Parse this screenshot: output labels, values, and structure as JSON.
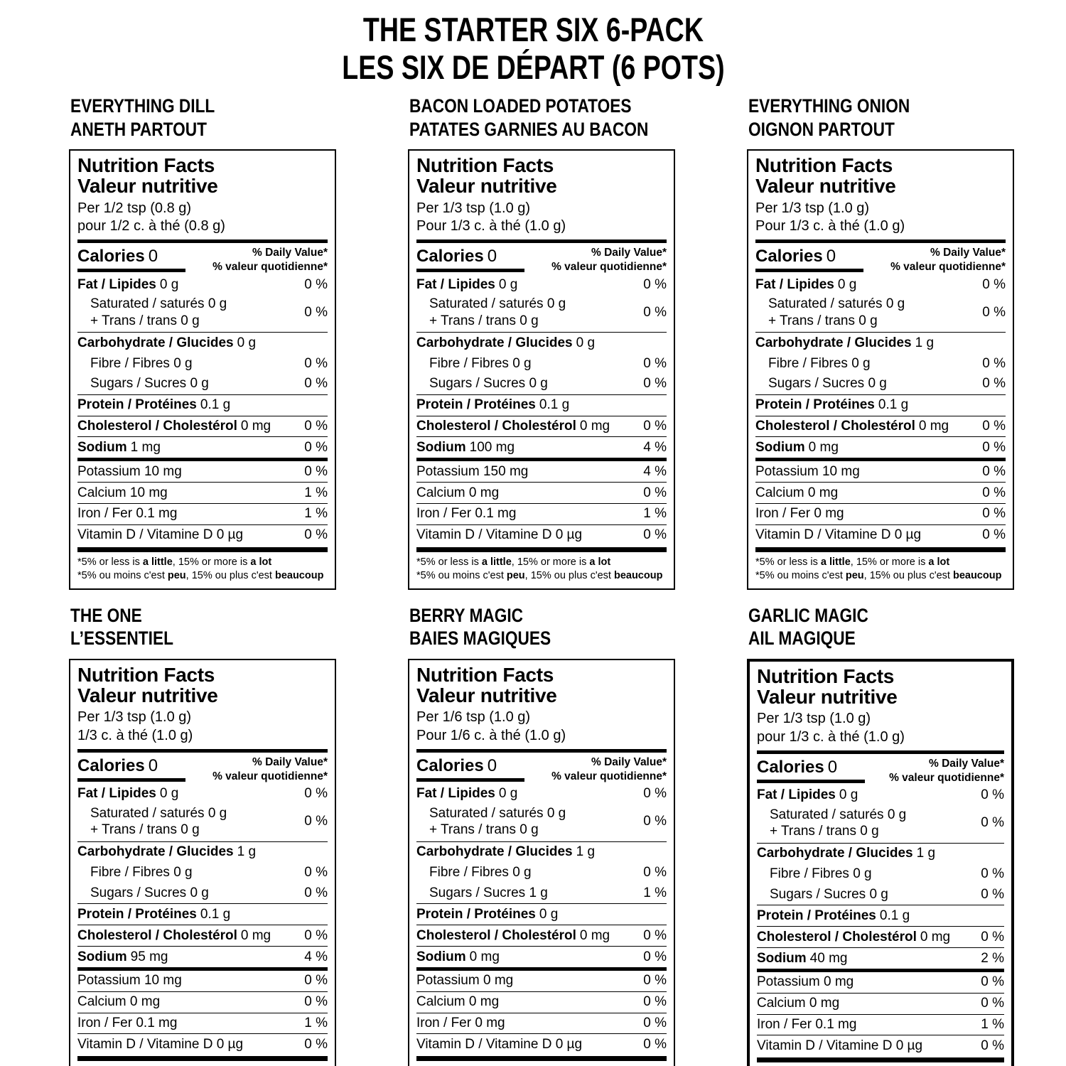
{
  "page_title": {
    "line1": "THE STARTER SIX 6-PACK",
    "line2": "LES SIX DE DÉPART (6 POTS)"
  },
  "shared": {
    "nutrition_facts_en": "Nutrition Facts",
    "nutrition_facts_fr": "Valeur nutritive",
    "calories_label": "Calories",
    "daily_value_en": "% Daily Value*",
    "daily_value_fr": "% valeur quotidienne*",
    "footnote_en_1": "*5% or less is ",
    "footnote_en_b1": "a little",
    "footnote_en_2": ", 15% or more is ",
    "footnote_en_b2": "a lot",
    "footnote_fr_1": "*5% ou moins c'est ",
    "footnote_fr_b1": "peu",
    "footnote_fr_2": ", 15% ou plus c'est ",
    "footnote_fr_b2": "beaucoup"
  },
  "labels": [
    {
      "name_en": "EVERYTHING DILL",
      "name_fr": "ANETH PARTOUT",
      "serving_en": "Per 1/2 tsp (0.8 g)",
      "serving_fr": "pour 1/2 c. à thé (0.8 g)",
      "calories_value": "0",
      "fat_label": "Fat / Lipides",
      "fat_amount": "0 g",
      "fat_dv": "0 %",
      "sat_line1": "Saturated / saturés 0 g",
      "sat_line2": "+ Trans / trans 0 g",
      "sat_dv": "0 %",
      "carb_label": "Carbohydrate / Glucides",
      "carb_amount": "0 g",
      "fibre_text": "Fibre / Fibres 0 g",
      "fibre_dv": "0 %",
      "sugars_text": "Sugars / Sucres 0 g",
      "sugars_dv": "0 %",
      "protein_label": "Protein / Protéines",
      "protein_amount": "0.1 g",
      "cholesterol_label": "Cholesterol / Cholestérol",
      "cholesterol_amount": "0 mg",
      "cholesterol_dv": "0 %",
      "sodium_label": "Sodium",
      "sodium_amount": "1 mg",
      "sodium_dv": "0 %",
      "potassium_text": "Potassium 10 mg",
      "potassium_dv": "0 %",
      "calcium_text": "Calcium 10 mg",
      "calcium_dv": "1 %",
      "iron_text": "Iron / Fer 0.1 mg",
      "iron_dv": "1 %",
      "vitamin_d_text": "Vitamin D / Vitamine D 0 µg",
      "vitamin_d_dv": "0 %"
    },
    {
      "name_en": "BACON LOADED POTATOES",
      "name_fr": "PATATES GARNIES AU BACON",
      "serving_en": "Per 1/3 tsp (1.0 g)",
      "serving_fr": "Pour 1/3 c. à thé (1.0 g)",
      "calories_value": "0",
      "fat_label": "Fat / Lipides",
      "fat_amount": "0 g",
      "fat_dv": "0 %",
      "sat_line1": "Saturated / saturés 0 g",
      "sat_line2": "+ Trans / trans 0 g",
      "sat_dv": "0 %",
      "carb_label": "Carbohydrate / Glucides",
      "carb_amount": "0 g",
      "fibre_text": "Fibre / Fibres 0 g",
      "fibre_dv": "0 %",
      "sugars_text": "Sugars / Sucres 0 g",
      "sugars_dv": "0 %",
      "protein_label": "Protein / Protéines",
      "protein_amount": "0.1 g",
      "cholesterol_label": "Cholesterol / Cholestérol",
      "cholesterol_amount": "0 mg",
      "cholesterol_dv": "0 %",
      "sodium_label": "Sodium",
      "sodium_amount": "100 mg",
      "sodium_dv": "4 %",
      "potassium_text": "Potassium 150 mg",
      "potassium_dv": "4 %",
      "calcium_text": "Calcium 0 mg",
      "calcium_dv": "0 %",
      "iron_text": "Iron / Fer 0.1 mg",
      "iron_dv": "1 %",
      "vitamin_d_text": "Vitamin D / Vitamine D 0 µg",
      "vitamin_d_dv": "0 %"
    },
    {
      "name_en": "EVERYTHING ONION",
      "name_fr": "OIGNON PARTOUT",
      "serving_en": "Per 1/3 tsp (1.0 g)",
      "serving_fr": "Pour 1/3 c. à thé (1.0 g)",
      "calories_value": "0",
      "fat_label": "Fat / Lipides",
      "fat_amount": "0 g",
      "fat_dv": "0 %",
      "sat_line1": "Saturated / saturés 0 g",
      "sat_line2": "+ Trans / trans 0 g",
      "sat_dv": "0 %",
      "carb_label": "Carbohydrate / Glucides",
      "carb_amount": "1 g",
      "fibre_text": "Fibre / Fibres 0 g",
      "fibre_dv": "0 %",
      "sugars_text": "Sugars / Sucres 0 g",
      "sugars_dv": "0 %",
      "protein_label": "Protein / Protéines",
      "protein_amount": "0.1 g",
      "cholesterol_label": "Cholesterol / Cholestérol",
      "cholesterol_amount": "0 mg",
      "cholesterol_dv": "0 %",
      "sodium_label": "Sodium",
      "sodium_amount": "0 mg",
      "sodium_dv": "0 %",
      "potassium_text": "Potassium 10 mg",
      "potassium_dv": "0 %",
      "calcium_text": "Calcium 0 mg",
      "calcium_dv": "0 %",
      "iron_text": "Iron / Fer 0 mg",
      "iron_dv": "0 %",
      "vitamin_d_text": "Vitamin D / Vitamine D 0 µg",
      "vitamin_d_dv": "0 %"
    },
    {
      "name_en": "THE ONE",
      "name_fr": "L’ESSENTIEL",
      "serving_en": "Per 1/3 tsp (1.0 g)",
      "serving_fr": "1/3 c. à thé (1.0 g)",
      "calories_value": "0",
      "fat_label": "Fat / Lipides",
      "fat_amount": "0 g",
      "fat_dv": "0 %",
      "sat_line1": "Saturated / saturés 0 g",
      "sat_line2": "+ Trans / trans 0 g",
      "sat_dv": "0 %",
      "carb_label": "Carbohydrate / Glucides",
      "carb_amount": "1 g",
      "fibre_text": "Fibre / Fibres 0 g",
      "fibre_dv": "0 %",
      "sugars_text": "Sugars / Sucres 0 g",
      "sugars_dv": "0 %",
      "protein_label": "Protein / Protéines",
      "protein_amount": "0.1 g",
      "cholesterol_label": "Cholesterol / Cholestérol",
      "cholesterol_amount": "0 mg",
      "cholesterol_dv": "0 %",
      "sodium_label": "Sodium",
      "sodium_amount": "95 mg",
      "sodium_dv": "4 %",
      "potassium_text": "Potassium 10 mg",
      "potassium_dv": "0 %",
      "calcium_text": "Calcium 0 mg",
      "calcium_dv": "0 %",
      "iron_text": "Iron / Fer 0.1 mg",
      "iron_dv": "1 %",
      "vitamin_d_text": "Vitamin D / Vitamine D 0 µg",
      "vitamin_d_dv": "0 %"
    },
    {
      "name_en": "BERRY MAGIC",
      "name_fr": "BAIES MAGIQUES",
      "serving_en": "Per 1/6 tsp (1.0 g)",
      "serving_fr": "Pour 1/6 c. à thé (1.0 g)",
      "calories_value": "0",
      "fat_label": "Fat / Lipides",
      "fat_amount": "0 g",
      "fat_dv": "0 %",
      "sat_line1": "Saturated / saturés 0 g",
      "sat_line2": "+ Trans / trans 0 g",
      "sat_dv": "0 %",
      "carb_label": "Carbohydrate / Glucides",
      "carb_amount": "1 g",
      "fibre_text": "Fibre / Fibres 0 g",
      "fibre_dv": "0 %",
      "sugars_text": "Sugars / Sucres 1 g",
      "sugars_dv": "1 %",
      "protein_label": "Protein / Protéines",
      "protein_amount": "0 g",
      "cholesterol_label": "Cholesterol / Cholestérol",
      "cholesterol_amount": "0 mg",
      "cholesterol_dv": "0 %",
      "sodium_label": "Sodium",
      "sodium_amount": "0 mg",
      "sodium_dv": "0 %",
      "potassium_text": "Potassium 0 mg",
      "potassium_dv": "0 %",
      "calcium_text": "Calcium 0 mg",
      "calcium_dv": "0 %",
      "iron_text": "Iron / Fer 0 mg",
      "iron_dv": "0 %",
      "vitamin_d_text": "Vitamin D / Vitamine D 0 µg",
      "vitamin_d_dv": "0 %"
    },
    {
      "name_en": "GARLIC MAGIC",
      "name_fr": "AIL MAGIQUE",
      "serving_en": "Per 1/3 tsp (1.0 g)",
      "serving_fr": "pour 1/3 c. à thé (1.0 g)",
      "calories_value": "0",
      "fat_label": "Fat / Lipides",
      "fat_amount": "0 g",
      "fat_dv": "0 %",
      "sat_line1": "Saturated / saturés 0 g",
      "sat_line2": "+ Trans / trans 0 g",
      "sat_dv": "0 %",
      "carb_label": "Carbohydrate / Glucides",
      "carb_amount": "1 g",
      "fibre_text": "Fibre / Fibres 0 g",
      "fibre_dv": "0 %",
      "sugars_text": "Sugars / Sucres 0 g",
      "sugars_dv": "0 %",
      "protein_label": "Protein / Protéines",
      "protein_amount": "0.1 g",
      "cholesterol_label": "Cholesterol / Cholestérol",
      "cholesterol_amount": "0 mg",
      "cholesterol_dv": "0 %",
      "sodium_label": "Sodium",
      "sodium_amount": "40 mg",
      "sodium_dv": "2 %",
      "potassium_text": "Potassium 0 mg",
      "potassium_dv": "0 %",
      "calcium_text": "Calcium 0 mg",
      "calcium_dv": "0 %",
      "iron_text": "Iron / Fer 0.1 mg",
      "iron_dv": "1 %",
      "vitamin_d_text": "Vitamin D / Vitamine D 0 µg",
      "vitamin_d_dv": "0 %"
    }
  ]
}
